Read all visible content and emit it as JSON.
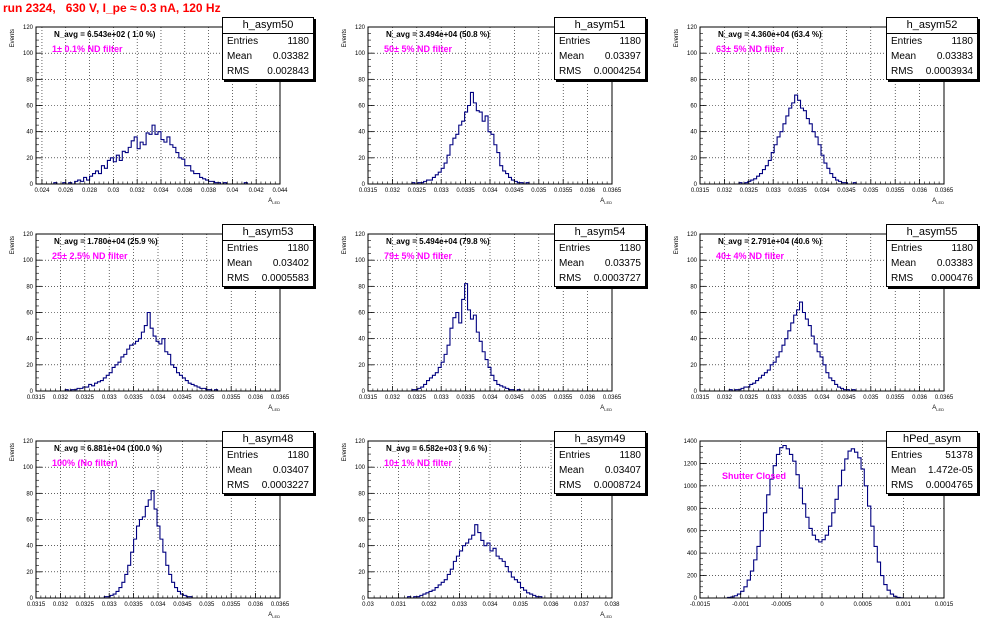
{
  "title": "run 2324,   630 V, I_pe ≈ 0.3 nA, 120 Hz",
  "stats_labels": {
    "entries": "Entries",
    "mean": "Mean",
    "rms": "RMS"
  },
  "colors": {
    "line": "#000080",
    "title": "#ff0000",
    "annotation": "#ff00ff",
    "grid": "#000000"
  },
  "chart_data": [
    {
      "type": "histogram",
      "name": "h_asym50",
      "n_avg": "N_avg = 6.543e+02 ( 1.0 %)",
      "filter": "1± 0.1% ND filter",
      "entries": "1180",
      "mean": "0.03382",
      "rms": "0.002843",
      "ylabel": "Events",
      "xlabel": "A_LED",
      "xlim": [
        0.0235,
        0.044
      ],
      "ylim": [
        0,
        120
      ],
      "xticks": [
        0.024,
        0.026,
        0.028,
        0.03,
        0.032,
        0.034,
        0.036,
        0.038,
        0.04,
        0.042,
        0.044
      ],
      "xtick_labels": [
        "0.024",
        "0.026",
        "0.028",
        "0.03",
        "0.032",
        "0.034",
        "0.036",
        "0.038",
        "0.04",
        "0.042",
        "0.044"
      ],
      "yticks": [
        0,
        20,
        40,
        60,
        80,
        100,
        120
      ],
      "grid": true,
      "bins": {
        "start": 0.025,
        "width": 0.00025,
        "counts": [
          1,
          0,
          0,
          1,
          0,
          1,
          0,
          2,
          3,
          2,
          5,
          3,
          6,
          8,
          10,
          8,
          14,
          12,
          18,
          20,
          17,
          22,
          18,
          25,
          24,
          28,
          33,
          36,
          27,
          32,
          30,
          39,
          38,
          45,
          38,
          40,
          34,
          32,
          36,
          30,
          28,
          24,
          20,
          19,
          14,
          14,
          10,
          8,
          8,
          5,
          4,
          3,
          2,
          2,
          1,
          1,
          0,
          1,
          0,
          0,
          0,
          0,
          0,
          0,
          1,
          0,
          0
        ]
      }
    },
    {
      "type": "histogram",
      "name": "h_asym51",
      "n_avg": "N_avg = 3.494e+04 (50.8 %)",
      "filter": "50± 5% ND filter",
      "entries": "1180",
      "mean": "0.03397",
      "rms": "0.0004254",
      "ylabel": "Events",
      "xlabel": "A_LED",
      "xlim": [
        0.0315,
        0.0365
      ],
      "ylim": [
        0,
        120
      ],
      "xticks": [
        0.0315,
        0.032,
        0.0325,
        0.033,
        0.0335,
        0.034,
        0.0345,
        0.035,
        0.0355,
        0.036,
        0.0365
      ],
      "xtick_labels": [
        "0.0315",
        "0.032",
        "0.0325",
        "0.033",
        "0.0335",
        "0.034",
        "0.0345",
        "0.035",
        "0.0355",
        "0.036",
        "0.0365"
      ],
      "yticks": [
        0,
        20,
        40,
        60,
        80,
        100,
        120
      ],
      "grid": true,
      "bins": {
        "start": 0.0324,
        "width": 6e-05,
        "counts": [
          1,
          0,
          1,
          1,
          2,
          3,
          3,
          5,
          7,
          9,
          12,
          16,
          22,
          30,
          35,
          38,
          45,
          48,
          55,
          60,
          70,
          62,
          56,
          55,
          48,
          52,
          40,
          38,
          30,
          24,
          14,
          10,
          8,
          5,
          3,
          2,
          1,
          1,
          0,
          1
        ]
      }
    },
    {
      "type": "histogram",
      "name": "h_asym52",
      "n_avg": "N_avg = 4.360e+04 (63.4 %)",
      "filter": "63± 5% ND filter",
      "entries": "1180",
      "mean": "0.03383",
      "rms": "0.0003934",
      "ylabel": "Events",
      "xlabel": "A_LED",
      "xlim": [
        0.0315,
        0.0365
      ],
      "ylim": [
        0,
        120
      ],
      "xticks": [
        0.0315,
        0.032,
        0.0325,
        0.033,
        0.0335,
        0.034,
        0.0345,
        0.035,
        0.0355,
        0.036,
        0.0365
      ],
      "xtick_labels": [
        "0.0315",
        "0.032",
        "0.0325",
        "0.033",
        "0.0335",
        "0.034",
        "0.0345",
        "0.035",
        "0.0355",
        "0.036",
        "0.0365"
      ],
      "yticks": [
        0,
        20,
        40,
        60,
        80,
        100,
        120
      ],
      "grid": true,
      "bins": {
        "start": 0.0323,
        "width": 6e-05,
        "counts": [
          1,
          0,
          1,
          2,
          3,
          4,
          6,
          8,
          11,
          14,
          18,
          24,
          30,
          36,
          40,
          46,
          52,
          58,
          62,
          68,
          64,
          58,
          56,
          50,
          46,
          40,
          36,
          30,
          22,
          16,
          12,
          8,
          5,
          3,
          2,
          1,
          1,
          0,
          0,
          1
        ]
      }
    },
    {
      "type": "histogram",
      "name": "h_asym53",
      "n_avg": "N_avg = 1.780e+04 (25.9 %)",
      "filter": "25± 2.5% ND filter",
      "entries": "1180",
      "mean": "0.03402",
      "rms": "0.0005583",
      "ylabel": "Events",
      "xlabel": "A_LED",
      "xlim": [
        0.0315,
        0.0365
      ],
      "ylim": [
        0,
        120
      ],
      "xticks": [
        0.0315,
        0.032,
        0.0325,
        0.033,
        0.0335,
        0.034,
        0.0345,
        0.035,
        0.0355,
        0.036,
        0.0365
      ],
      "xtick_labels": [
        "0.0315",
        "0.032",
        "0.0325",
        "0.033",
        "0.0335",
        "0.034",
        "0.0345",
        "0.035",
        "0.0355",
        "0.036",
        "0.0365"
      ],
      "yticks": [
        0,
        20,
        40,
        60,
        80,
        100,
        120
      ],
      "grid": true,
      "bins": {
        "start": 0.0321,
        "width": 6e-05,
        "counts": [
          1,
          0,
          1,
          1,
          2,
          2,
          3,
          3,
          5,
          4,
          6,
          7,
          8,
          10,
          12,
          14,
          18,
          20,
          22,
          26,
          28,
          32,
          35,
          36,
          38,
          40,
          45,
          50,
          60,
          48,
          42,
          38,
          36,
          40,
          30,
          28,
          20,
          18,
          14,
          12,
          10,
          8,
          6,
          5,
          4,
          3,
          2,
          2,
          1,
          1,
          0,
          1
        ]
      }
    },
    {
      "type": "histogram",
      "name": "h_asym54",
      "n_avg": "N_avg = 5.494e+04 (79.8 %)",
      "filter": "79± 5% ND filter",
      "entries": "1180",
      "mean": "0.03375",
      "rms": "0.0003727",
      "ylabel": "Events",
      "xlabel": "A_LED",
      "xlim": [
        0.0315,
        0.0365
      ],
      "ylim": [
        0,
        120
      ],
      "xticks": [
        0.0315,
        0.032,
        0.0325,
        0.033,
        0.0335,
        0.034,
        0.0345,
        0.035,
        0.0355,
        0.036,
        0.0365
      ],
      "xtick_labels": [
        "0.0315",
        "0.032",
        "0.0325",
        "0.033",
        "0.0335",
        "0.034",
        "0.0345",
        "0.035",
        "0.0355",
        "0.036",
        "0.0365"
      ],
      "yticks": [
        0,
        20,
        40,
        60,
        80,
        100,
        120
      ],
      "grid": true,
      "bins": {
        "start": 0.0324,
        "width": 6e-05,
        "counts": [
          1,
          1,
          2,
          3,
          5,
          8,
          10,
          12,
          14,
          18,
          22,
          28,
          35,
          48,
          56,
          60,
          52,
          70,
          82,
          62,
          55,
          58,
          45,
          38,
          30,
          24,
          18,
          12,
          8,
          5,
          4,
          3,
          2,
          1,
          1,
          0,
          1
        ]
      }
    },
    {
      "type": "histogram",
      "name": "h_asym55",
      "n_avg": "N_avg = 2.791e+04 (40.6 %)",
      "filter": "40± 4% ND filter",
      "entries": "1180",
      "mean": "0.03383",
      "rms": "0.000476",
      "ylabel": "Events",
      "xlabel": "A_LED",
      "xlim": [
        0.0315,
        0.0365
      ],
      "ylim": [
        0,
        120
      ],
      "xticks": [
        0.0315,
        0.032,
        0.0325,
        0.033,
        0.0335,
        0.034,
        0.0345,
        0.035,
        0.0355,
        0.036,
        0.0365
      ],
      "xtick_labels": [
        "0.0315",
        "0.032",
        "0.0325",
        "0.033",
        "0.0335",
        "0.034",
        "0.0345",
        "0.035",
        "0.0355",
        "0.036",
        "0.0365"
      ],
      "yticks": [
        0,
        20,
        40,
        60,
        80,
        100,
        120
      ],
      "grid": true,
      "bins": {
        "start": 0.0321,
        "width": 6e-05,
        "counts": [
          1,
          0,
          1,
          1,
          2,
          3,
          3,
          5,
          6,
          8,
          10,
          12,
          14,
          16,
          20,
          22,
          26,
          30,
          35,
          40,
          46,
          52,
          58,
          62,
          68,
          60,
          55,
          50,
          42,
          36,
          30,
          26,
          20,
          14,
          10,
          8,
          5,
          3,
          2,
          1,
          1,
          0,
          1
        ]
      }
    },
    {
      "type": "histogram",
      "name": "h_asym48",
      "n_avg": "N_avg = 6.881e+04 (100.0 %)",
      "filter": "100% (No filter)",
      "entries": "1180",
      "mean": "0.03407",
      "rms": "0.0003227",
      "ylabel": "Events",
      "xlabel": "A_LED",
      "xlim": [
        0.0315,
        0.0365
      ],
      "ylim": [
        0,
        120
      ],
      "xticks": [
        0.0315,
        0.032,
        0.0325,
        0.033,
        0.0335,
        0.034,
        0.0345,
        0.035,
        0.0355,
        0.036,
        0.0365
      ],
      "xtick_labels": [
        "0.0315",
        "0.032",
        "0.0325",
        "0.033",
        "0.0335",
        "0.034",
        "0.0345",
        "0.035",
        "0.0355",
        "0.036",
        "0.0365"
      ],
      "yticks": [
        0,
        20,
        40,
        60,
        80,
        100,
        120
      ],
      "grid": true,
      "bins": {
        "start": 0.0329,
        "width": 6e-05,
        "counts": [
          1,
          1,
          2,
          3,
          5,
          8,
          12,
          18,
          25,
          35,
          45,
          55,
          60,
          62,
          70,
          75,
          82,
          68,
          55,
          45,
          35,
          25,
          18,
          12,
          8,
          5,
          3,
          2,
          1,
          1
        ]
      }
    },
    {
      "type": "histogram",
      "name": "h_asym49",
      "n_avg": "N_avg = 6.582e+03 ( 9.6 %)",
      "filter": "10± 1% ND filter",
      "entries": "1180",
      "mean": "0.03407",
      "rms": "0.0008724",
      "ylabel": "Events",
      "xlabel": "A_LED",
      "xlim": [
        0.03,
        0.038
      ],
      "ylim": [
        0,
        120
      ],
      "xticks": [
        0.03,
        0.031,
        0.032,
        0.033,
        0.034,
        0.035,
        0.036,
        0.037,
        0.038
      ],
      "xtick_labels": [
        "0.03",
        "0.031",
        "0.032",
        "0.033",
        "0.034",
        "0.035",
        "0.036",
        "0.037",
        "0.038"
      ],
      "yticks": [
        0,
        20,
        40,
        60,
        80,
        100,
        120
      ],
      "grid": true,
      "bins": {
        "start": 0.0313,
        "width": 0.0001,
        "counts": [
          1,
          0,
          1,
          1,
          2,
          3,
          4,
          5,
          6,
          8,
          10,
          12,
          14,
          18,
          22,
          28,
          32,
          36,
          40,
          42,
          45,
          48,
          56,
          50,
          44,
          40,
          42,
          36,
          38,
          32,
          30,
          28,
          24,
          20,
          16,
          14,
          12,
          8,
          6,
          4,
          3,
          2,
          1,
          1
        ]
      }
    },
    {
      "type": "histogram",
      "name": "hPed_asym",
      "annotation": "Shutter Closed",
      "entries": "51378",
      "mean": "1.472e-05",
      "rms": "0.0004765",
      "ylabel": "",
      "xlabel": "",
      "xlim": [
        -0.0015,
        0.0015
      ],
      "ylim": [
        0,
        1400
      ],
      "xticks": [
        -0.0015,
        -0.001,
        -0.0005,
        0,
        0.0005,
        0.001,
        0.0015
      ],
      "xtick_labels": [
        "-0.0015",
        "-0.001",
        "-0.0005",
        "0",
        "0.0005",
        "0.001",
        "0.0015"
      ],
      "yticks": [
        0,
        200,
        400,
        600,
        800,
        1000,
        1200,
        1400
      ],
      "grid": true,
      "bins": {
        "start": -0.0012,
        "width": 4e-05,
        "counts": [
          0,
          5,
          10,
          20,
          35,
          60,
          100,
          160,
          240,
          340,
          460,
          600,
          760,
          920,
          1060,
          1180,
          1280,
          1340,
          1360,
          1330,
          1280,
          1220,
          1100,
          980,
          840,
          720,
          620,
          560,
          520,
          500,
          520,
          560,
          640,
          760,
          880,
          1000,
          1140,
          1240,
          1310,
          1330,
          1300,
          1250,
          1150,
          1000,
          820,
          640,
          460,
          320,
          200,
          120,
          70,
          35,
          15,
          5,
          2
        ]
      }
    }
  ]
}
